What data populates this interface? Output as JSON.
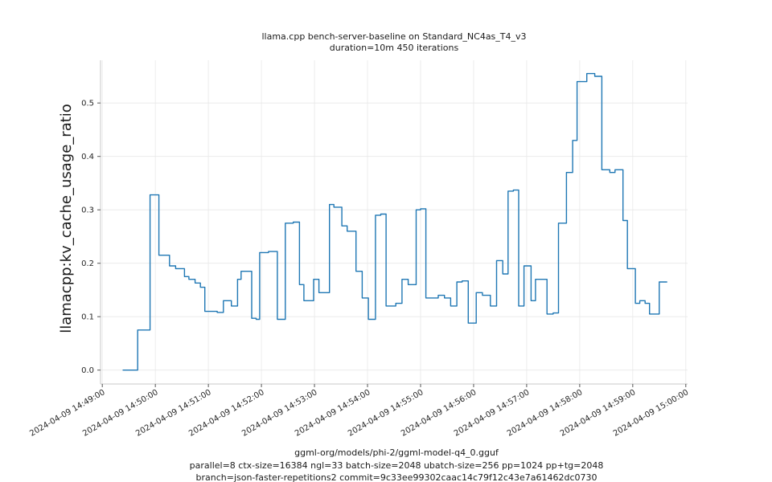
{
  "chart_data": {
    "type": "line",
    "draw_style": "steps-post",
    "title": "llama.cpp bench-server-baseline on Standard_NC4as_T4_v3",
    "subtitle": "duration=10m 450 iterations",
    "ylabel": "llamacpp:kv_cache_usage_ratio",
    "xlabel": "",
    "line_color": "#1f77b4",
    "grid": true,
    "grid_color": "#e8e8e8",
    "spine_color": "#c9c9c9",
    "tick_color": "#555555",
    "legend_position": "none",
    "y_tick_labels": [
      "0.0",
      "0.1",
      "0.2",
      "0.3",
      "0.4",
      "0.5"
    ],
    "y_tick_values": [
      0.0,
      0.1,
      0.2,
      0.3,
      0.4,
      0.5
    ],
    "x_tick_labels": [
      "2024-04-09 14:49:00",
      "2024-04-09 14:50:00",
      "2024-04-09 14:51:00",
      "2024-04-09 14:52:00",
      "2024-04-09 14:53:00",
      "2024-04-09 14:54:00",
      "2024-04-09 14:55:00",
      "2024-04-09 14:56:00",
      "2024-04-09 14:57:00",
      "2024-04-09 14:58:00",
      "2024-04-09 14:59:00",
      "2024-04-09 15:00:00"
    ],
    "x_tick_seconds": [
      0,
      60,
      120,
      180,
      240,
      300,
      360,
      420,
      480,
      540,
      600,
      660
    ],
    "xlim_seconds": [
      -2,
      662
    ],
    "ylim": [
      -0.026,
      0.58
    ],
    "points_t_seconds_value": [
      [
        23,
        0.0
      ],
      [
        40,
        0.075
      ],
      [
        54,
        0.328
      ],
      [
        64,
        0.215
      ],
      [
        76,
        0.195
      ],
      [
        83,
        0.19
      ],
      [
        93,
        0.175
      ],
      [
        98,
        0.17
      ],
      [
        105,
        0.163
      ],
      [
        111,
        0.155
      ],
      [
        116,
        0.11
      ],
      [
        130,
        0.108
      ],
      [
        137,
        0.13
      ],
      [
        146,
        0.12
      ],
      [
        153,
        0.17
      ],
      [
        157,
        0.185
      ],
      [
        169,
        0.097
      ],
      [
        174,
        0.095
      ],
      [
        178,
        0.22
      ],
      [
        188,
        0.222
      ],
      [
        198,
        0.095
      ],
      [
        207,
        0.275
      ],
      [
        216,
        0.277
      ],
      [
        223,
        0.16
      ],
      [
        228,
        0.13
      ],
      [
        239,
        0.17
      ],
      [
        245,
        0.145
      ],
      [
        257,
        0.31
      ],
      [
        262,
        0.305
      ],
      [
        271,
        0.27
      ],
      [
        277,
        0.26
      ],
      [
        287,
        0.185
      ],
      [
        294,
        0.135
      ],
      [
        301,
        0.095
      ],
      [
        309,
        0.29
      ],
      [
        315,
        0.292
      ],
      [
        321,
        0.12
      ],
      [
        332,
        0.125
      ],
      [
        339,
        0.17
      ],
      [
        346,
        0.16
      ],
      [
        355,
        0.3
      ],
      [
        360,
        0.302
      ],
      [
        366,
        0.135
      ],
      [
        380,
        0.14
      ],
      [
        387,
        0.135
      ],
      [
        394,
        0.12
      ],
      [
        401,
        0.165
      ],
      [
        407,
        0.167
      ],
      [
        414,
        0.088
      ],
      [
        423,
        0.145
      ],
      [
        430,
        0.14
      ],
      [
        439,
        0.12
      ],
      [
        446,
        0.205
      ],
      [
        453,
        0.18
      ],
      [
        459,
        0.335
      ],
      [
        465,
        0.337
      ],
      [
        471,
        0.12
      ],
      [
        477,
        0.195
      ],
      [
        485,
        0.13
      ],
      [
        490,
        0.17
      ],
      [
        503,
        0.105
      ],
      [
        510,
        0.107
      ],
      [
        516,
        0.275
      ],
      [
        525,
        0.37
      ],
      [
        532,
        0.43
      ],
      [
        537,
        0.54
      ],
      [
        548,
        0.555
      ],
      [
        557,
        0.55
      ],
      [
        565,
        0.375
      ],
      [
        574,
        0.37
      ],
      [
        580,
        0.375
      ],
      [
        589,
        0.28
      ],
      [
        594,
        0.19
      ],
      [
        603,
        0.125
      ],
      [
        608,
        0.13
      ],
      [
        614,
        0.125
      ],
      [
        619,
        0.105
      ],
      [
        630,
        0.165
      ],
      [
        639,
        0.165
      ]
    ],
    "footer_lines": [
      "ggml-org/models/phi-2/ggml-model-q4_0.gguf",
      "parallel=8 ctx-size=16384 ngl=33 batch-size=2048 ubatch-size=256 pp=1024 pp+tg=2048",
      "branch=json-faster-repetitions2 commit=9c33ee99302caac14c79f12c43e7a61462dc0730"
    ]
  }
}
